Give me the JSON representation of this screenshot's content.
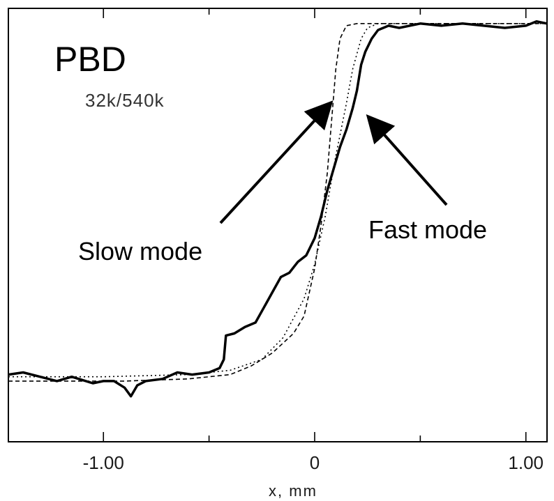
{
  "chart_data": {
    "type": "line",
    "title": "PBD",
    "subtitle": "32k/540k",
    "xlabel": "x, mm",
    "ylabel": "",
    "xlim": [
      -1.45,
      1.1
    ],
    "ylim": [
      0,
      1
    ],
    "x_ticks": [
      -1.0,
      0,
      1.0
    ],
    "x_tick_labels": [
      "-1.00",
      "0",
      "1.00"
    ],
    "grid": false,
    "legend": "none",
    "series": [
      {
        "style": "solid-thick",
        "x": [
          -1.45,
          -1.38,
          -1.3,
          -1.22,
          -1.15,
          -1.05,
          -1.0,
          -0.95,
          -0.9,
          -0.87,
          -0.84,
          -0.8,
          -0.72,
          -0.65,
          -0.58,
          -0.5,
          -0.45,
          -0.43,
          -0.42,
          -0.38,
          -0.33,
          -0.28,
          -0.24,
          -0.2,
          -0.16,
          -0.12,
          -0.08,
          -0.04,
          0.0,
          0.03,
          0.06,
          0.09,
          0.12,
          0.15,
          0.18,
          0.2,
          0.22,
          0.24,
          0.27,
          0.3,
          0.35,
          0.4,
          0.5,
          0.6,
          0.7,
          0.8,
          0.9,
          1.0,
          1.05,
          1.1
        ],
        "y": [
          0.155,
          0.16,
          0.15,
          0.14,
          0.15,
          0.135,
          0.14,
          0.14,
          0.125,
          0.105,
          0.13,
          0.14,
          0.145,
          0.16,
          0.155,
          0.16,
          0.17,
          0.19,
          0.245,
          0.25,
          0.265,
          0.275,
          0.31,
          0.345,
          0.38,
          0.39,
          0.415,
          0.43,
          0.47,
          0.52,
          0.58,
          0.63,
          0.68,
          0.72,
          0.77,
          0.81,
          0.87,
          0.9,
          0.93,
          0.95,
          0.96,
          0.955,
          0.965,
          0.96,
          0.965,
          0.96,
          0.955,
          0.96,
          0.97,
          0.965
        ]
      },
      {
        "style": "dashed",
        "x": [
          -1.45,
          -1.2,
          -0.9,
          -0.6,
          -0.4,
          -0.3,
          -0.2,
          -0.1,
          -0.05,
          0.0,
          0.03,
          0.06,
          0.08,
          0.1,
          0.12,
          0.15,
          0.2,
          0.3,
          0.5,
          1.0,
          1.1
        ],
        "y": [
          0.14,
          0.14,
          0.14,
          0.145,
          0.155,
          0.175,
          0.205,
          0.25,
          0.29,
          0.4,
          0.5,
          0.62,
          0.74,
          0.86,
          0.93,
          0.96,
          0.965,
          0.965,
          0.965,
          0.965,
          0.965
        ]
      },
      {
        "style": "dotted",
        "x": [
          -1.45,
          -1.0,
          -0.6,
          -0.4,
          -0.25,
          -0.15,
          -0.05,
          0.0,
          0.05,
          0.1,
          0.15,
          0.18,
          0.22,
          0.25,
          0.3,
          0.5,
          1.0,
          1.1
        ],
        "y": [
          0.15,
          0.15,
          0.155,
          0.165,
          0.19,
          0.24,
          0.33,
          0.41,
          0.52,
          0.66,
          0.78,
          0.86,
          0.93,
          0.955,
          0.965,
          0.965,
          0.965,
          0.965
        ]
      }
    ],
    "annotations": [
      {
        "name": "slow-mode-label",
        "text": "Slow mode",
        "points_to": [
          0.07,
          0.81
        ]
      },
      {
        "name": "fast-mode-label",
        "text": "Fast mode",
        "points_to": [
          0.24,
          0.79
        ]
      }
    ]
  }
}
